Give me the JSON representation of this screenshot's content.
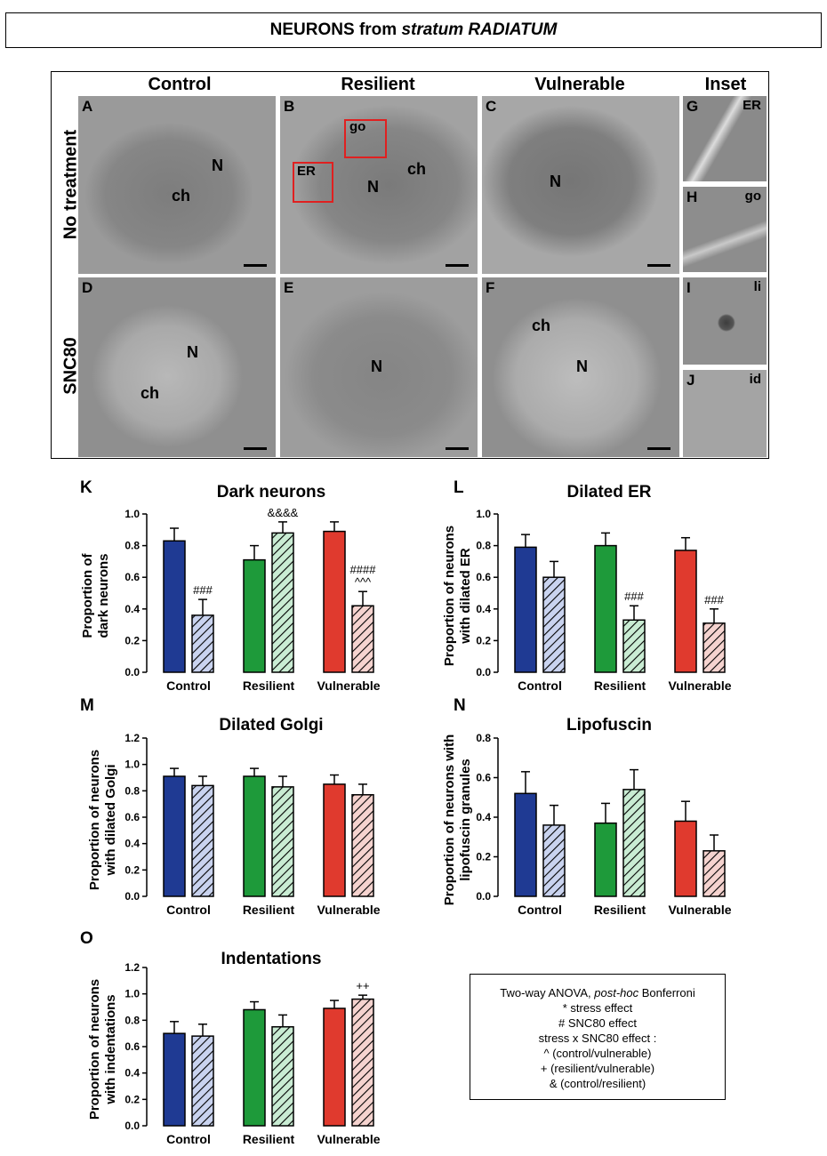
{
  "figure_title": {
    "text": "NEURONS from ",
    "italic": "stratum RADIATUM"
  },
  "micrographs": {
    "columns": [
      "Control",
      "Resilient",
      "Vulnerable",
      "Inset"
    ],
    "rows": [
      "No treatment",
      "SNC80"
    ],
    "panels": [
      {
        "letter": "A",
        "labels": [
          "N",
          "ch"
        ]
      },
      {
        "letter": "B",
        "labels": [
          "N",
          "ch"
        ],
        "boxes": [
          "go",
          "ER"
        ]
      },
      {
        "letter": "C",
        "labels": [
          "N"
        ]
      },
      {
        "letter": "D",
        "labels": [
          "N",
          "ch"
        ]
      },
      {
        "letter": "E",
        "labels": [
          "N"
        ]
      },
      {
        "letter": "F",
        "labels": [
          "ch",
          "N"
        ]
      }
    ],
    "insets": [
      {
        "letter": "G",
        "label": "ER"
      },
      {
        "letter": "H",
        "label": "go"
      },
      {
        "letter": "I",
        "label": "li"
      },
      {
        "letter": "J",
        "label": "id"
      }
    ]
  },
  "colors": {
    "control": "#1f3a93",
    "resilient": "#1e9a3a",
    "vulnerable": "#e03a2e",
    "control_hatch_bg": "#c9d3ef",
    "resilient_hatch_bg": "#c9ecd3",
    "vulnerable_hatch_bg": "#f5d3cf"
  },
  "chart_data": [
    {
      "panel": "K",
      "type": "bar",
      "title": "Dark neurons",
      "ylabel": [
        "Proportion of",
        "dark neurons"
      ],
      "categories": [
        "Control",
        "Resilient",
        "Vulnerable"
      ],
      "ylim": [
        0,
        1.0
      ],
      "yticks": [
        "0.0",
        "0.2",
        "0.4",
        "0.6",
        "0.8",
        "1.0"
      ],
      "series": [
        {
          "values": [
            0.83,
            0.71,
            0.89
          ],
          "errors": [
            0.08,
            0.09,
            0.06
          ],
          "pattern": "solid"
        },
        {
          "values": [
            0.36,
            0.88,
            0.42
          ],
          "errors": [
            0.1,
            0.07,
            0.09
          ],
          "pattern": "hatched"
        }
      ],
      "annotations": [
        {
          "category": 0,
          "series": 1,
          "lines": [
            "###"
          ]
        },
        {
          "category": 1,
          "series": 1,
          "lines": [
            "&&&&"
          ]
        },
        {
          "category": 2,
          "series": 1,
          "lines": [
            "####",
            "^^^"
          ]
        }
      ]
    },
    {
      "panel": "L",
      "type": "bar",
      "title": "Dilated ER",
      "ylabel": [
        "Proportion of neurons",
        "with dilated ER"
      ],
      "categories": [
        "Control",
        "Resilient",
        "Vulnerable"
      ],
      "ylim": [
        0,
        1.0
      ],
      "yticks": [
        "0.0",
        "0.2",
        "0.4",
        "0.6",
        "0.8",
        "1.0"
      ],
      "series": [
        {
          "values": [
            0.79,
            0.8,
            0.77
          ],
          "errors": [
            0.08,
            0.08,
            0.08
          ],
          "pattern": "solid"
        },
        {
          "values": [
            0.6,
            0.33,
            0.31
          ],
          "errors": [
            0.1,
            0.09,
            0.09
          ],
          "pattern": "hatched"
        }
      ],
      "annotations": [
        {
          "category": 1,
          "series": 1,
          "lines": [
            "###"
          ]
        },
        {
          "category": 2,
          "series": 1,
          "lines": [
            "###"
          ]
        }
      ]
    },
    {
      "panel": "M",
      "type": "bar",
      "title": "Dilated Golgi",
      "ylabel": [
        "Proportion of neurons",
        "with dilated Golgi"
      ],
      "categories": [
        "Control",
        "Resilient",
        "Vulnerable"
      ],
      "ylim": [
        0,
        1.2
      ],
      "yticks": [
        "0.0",
        "0.2",
        "0.4",
        "0.6",
        "0.8",
        "1.0",
        "1.2"
      ],
      "series": [
        {
          "values": [
            0.91,
            0.91,
            0.85
          ],
          "errors": [
            0.06,
            0.06,
            0.07
          ],
          "pattern": "solid"
        },
        {
          "values": [
            0.84,
            0.83,
            0.77
          ],
          "errors": [
            0.07,
            0.08,
            0.08
          ],
          "pattern": "hatched"
        }
      ],
      "annotations": []
    },
    {
      "panel": "N",
      "type": "bar",
      "title": "Lipofuscin",
      "ylabel": [
        "Proportion of neurons with",
        "lipofuscin granules"
      ],
      "categories": [
        "Control",
        "Resilient",
        "Vulnerable"
      ],
      "ylim": [
        0,
        0.8
      ],
      "yticks": [
        "0.0",
        "0.2",
        "0.4",
        "0.6",
        "0.8"
      ],
      "series": [
        {
          "values": [
            0.52,
            0.37,
            0.38
          ],
          "errors": [
            0.11,
            0.1,
            0.1
          ],
          "pattern": "solid"
        },
        {
          "values": [
            0.36,
            0.54,
            0.23
          ],
          "errors": [
            0.1,
            0.1,
            0.08
          ],
          "pattern": "hatched"
        }
      ],
      "annotations": []
    },
    {
      "panel": "O",
      "type": "bar",
      "title": "Indentations",
      "ylabel": [
        "Proportion of neurons",
        "with indentations"
      ],
      "categories": [
        "Control",
        "Resilient",
        "Vulnerable"
      ],
      "ylim": [
        0,
        1.2
      ],
      "yticks": [
        "0.0",
        "0.2",
        "0.4",
        "0.6",
        "0.8",
        "1.0",
        "1.2"
      ],
      "series": [
        {
          "values": [
            0.7,
            0.88,
            0.89
          ],
          "errors": [
            0.09,
            0.06,
            0.06
          ],
          "pattern": "solid"
        },
        {
          "values": [
            0.68,
            0.75,
            0.96
          ],
          "errors": [
            0.09,
            0.09,
            0.03
          ],
          "pattern": "hatched"
        }
      ],
      "annotations": [
        {
          "category": 2,
          "series": 1,
          "lines": [
            "++"
          ]
        }
      ]
    }
  ],
  "legend": {
    "line1_prefix": "Two-way ANOVA, ",
    "line1_italic": "post-hoc",
    "line1_suffix": " Bonferroni",
    "lines": [
      "* stress effect",
      "# SNC80 effect",
      "stress x SNC80 effect :",
      "^ (control/vulnerable)",
      "+ (resilient/vulnerable)",
      "& (control/resilient)"
    ]
  }
}
